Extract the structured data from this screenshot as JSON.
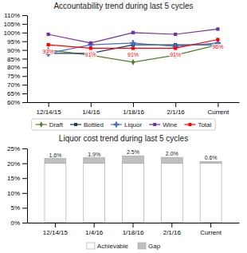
{
  "chart_data": [
    {
      "type": "line",
      "title": "Accountability trend during last 5 cycles",
      "categories": [
        "12/14/15",
        "1/4/16",
        "1/18/16",
        "2/1/16",
        "Current"
      ],
      "series": [
        {
          "name": "Draft",
          "color": "#4f8028",
          "marker": "diamond",
          "values": [
            90,
            87,
            83,
            87,
            93
          ]
        },
        {
          "name": "Bottled",
          "color": "#1f3864",
          "marker": "square",
          "values": [
            88,
            88,
            93,
            93,
            93
          ]
        },
        {
          "name": "Liquor",
          "color": "#4472c4",
          "marker": "plus",
          "values": [
            88,
            93,
            94,
            92,
            94
          ]
        },
        {
          "name": "Wine",
          "color": "#7030a0",
          "marker": "square",
          "values": [
            99,
            94,
            100,
            99,
            102
          ]
        },
        {
          "name": "Total",
          "color": "#ff0000",
          "marker": "square",
          "values": [
            93,
            91,
            91,
            91,
            96
          ],
          "data_labels": true,
          "value_labels": [
            "93%",
            "91%",
            "91%",
            "91%",
            "96%"
          ]
        }
      ],
      "ylim": [
        60,
        110
      ],
      "yticks": [
        {
          "value": 60,
          "label": "60%"
        },
        {
          "value": 65,
          "label": "65%"
        },
        {
          "value": 70,
          "label": "70%"
        },
        {
          "value": 75,
          "label": "75%"
        },
        {
          "value": 80,
          "label": "80%"
        },
        {
          "value": 85,
          "label": "85%"
        },
        {
          "value": 90,
          "label": "90%"
        },
        {
          "value": 95,
          "label": "95%"
        },
        {
          "value": 100,
          "label": "100%"
        },
        {
          "value": 105,
          "label": "105%"
        },
        {
          "value": 110,
          "label": "110%"
        }
      ],
      "grid": false,
      "legend": "bottom"
    },
    {
      "type": "bar",
      "title": "Liquor cost trend during last 5 cycles",
      "categories": [
        "12/14/15",
        "1/4/16",
        "1/18/16",
        "2/1/16",
        "Current"
      ],
      "stacked": true,
      "series": [
        {
          "name": "Achievable",
          "color": "#ffffff",
          "values": [
            20.0,
            20.0,
            20.0,
            20.0,
            20.0
          ]
        },
        {
          "name": "Gap",
          "color": "#bfbfbf",
          "values": [
            1.6,
            1.9,
            2.5,
            2.0,
            0.6
          ],
          "data_labels": true,
          "value_labels": [
            "1.6%",
            "1.9%",
            "2.5%",
            "2.0%",
            "0.6%"
          ]
        }
      ],
      "ylim": [
        0,
        25
      ],
      "yticks": [
        {
          "value": 0,
          "label": "0%"
        },
        {
          "value": 5,
          "label": "5%"
        },
        {
          "value": 10,
          "label": "10%"
        },
        {
          "value": 15,
          "label": "15%"
        },
        {
          "value": 20,
          "label": "20%"
        },
        {
          "value": 25,
          "label": "25%"
        }
      ],
      "grid": false,
      "legend": "bottom"
    }
  ]
}
